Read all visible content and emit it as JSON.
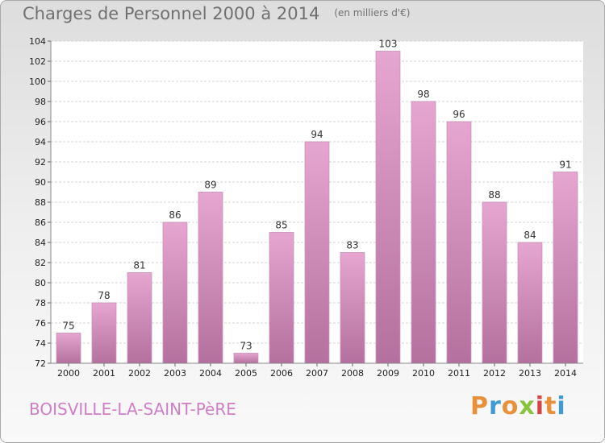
{
  "title": "Charges de Personnel 2000 à 2014",
  "subtitle": "(en milliers d'€)",
  "town": "BOISVILLE-LA-SAINT-PèRE",
  "logo": {
    "letters": [
      "P",
      "r",
      "o",
      "x",
      "i",
      "t",
      "i"
    ],
    "colors": [
      "#e8903a",
      "#3f9ad6",
      "#e8903a",
      "#8ac43f",
      "#d64545",
      "#e8903a",
      "#3f9ad6"
    ]
  },
  "colors": {
    "bar_light": "#e5a6d0",
    "bar_dark": "#b4709e",
    "accent": "#d07ec8"
  },
  "chart_data": {
    "type": "bar",
    "categories": [
      "2000",
      "2001",
      "2002",
      "2003",
      "2004",
      "2005",
      "2006",
      "2007",
      "2008",
      "2009",
      "2010",
      "2011",
      "2012",
      "2013",
      "2014"
    ],
    "values": [
      75,
      78,
      81,
      86,
      89,
      73,
      85,
      94,
      83,
      103,
      98,
      96,
      88,
      84,
      91
    ],
    "ylim": [
      72,
      104
    ],
    "yticks": [
      72,
      74,
      76,
      78,
      80,
      82,
      84,
      86,
      88,
      90,
      92,
      94,
      96,
      98,
      100,
      102,
      104
    ],
    "grid": true
  }
}
